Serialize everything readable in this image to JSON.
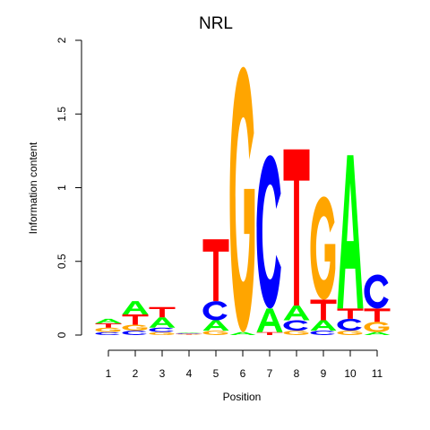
{
  "chart_data": {
    "type": "sequence-logo",
    "title": "NRL",
    "xlabel": "Position",
    "ylabel": "Information content",
    "ylim": [
      0,
      2
    ],
    "y_ticks": [
      "0",
      "0.5",
      "1",
      "1.5",
      "2"
    ],
    "x_ticks": [
      "1",
      "2",
      "3",
      "4",
      "5",
      "6",
      "7",
      "8",
      "9",
      "10",
      "11"
    ],
    "colors": {
      "A": "#00ff00",
      "C": "#0000ff",
      "G": "#ffa500",
      "T": "#ff0000"
    },
    "positions": [
      {
        "position": 1,
        "stack": [
          [
            "C",
            0.02
          ],
          [
            "G",
            0.03
          ],
          [
            "T",
            0.03
          ],
          [
            "A",
            0.03
          ]
        ]
      },
      {
        "position": 2,
        "stack": [
          [
            "C",
            0.03
          ],
          [
            "G",
            0.04
          ],
          [
            "T",
            0.07
          ],
          [
            "A",
            0.09
          ]
        ]
      },
      {
        "position": 3,
        "stack": [
          [
            "G",
            0.02
          ],
          [
            "C",
            0.03
          ],
          [
            "A",
            0.07
          ],
          [
            "T",
            0.07
          ]
        ]
      },
      {
        "position": 4,
        "stack": [
          [
            "G",
            0.004
          ],
          [
            "T",
            0.004
          ],
          [
            "C",
            0.004
          ],
          [
            "A",
            0.004
          ]
        ]
      },
      {
        "position": 5,
        "stack": [
          [
            "G",
            0.03
          ],
          [
            "A",
            0.07
          ],
          [
            "C",
            0.13
          ],
          [
            "T",
            0.42
          ]
        ]
      },
      {
        "position": 6,
        "stack": [
          [
            "A",
            0.02
          ],
          [
            "G",
            1.8
          ]
        ]
      },
      {
        "position": 7,
        "stack": [
          [
            "T",
            0.02
          ],
          [
            "A",
            0.16
          ],
          [
            "C",
            1.04
          ]
        ]
      },
      {
        "position": 8,
        "stack": [
          [
            "G",
            0.03
          ],
          [
            "C",
            0.07
          ],
          [
            "A",
            0.1
          ],
          [
            "T",
            1.06
          ]
        ]
      },
      {
        "position": 9,
        "stack": [
          [
            "C",
            0.03
          ],
          [
            "A",
            0.07
          ],
          [
            "T",
            0.14
          ],
          [
            "G",
            0.7
          ]
        ]
      },
      {
        "position": 10,
        "stack": [
          [
            "G",
            0.03
          ],
          [
            "C",
            0.08
          ],
          [
            "T",
            0.07
          ],
          [
            "A",
            1.04
          ]
        ]
      },
      {
        "position": 11,
        "stack": [
          [
            "A",
            0.02
          ],
          [
            "G",
            0.07
          ],
          [
            "T",
            0.09
          ],
          [
            "C",
            0.23
          ]
        ]
      }
    ]
  }
}
